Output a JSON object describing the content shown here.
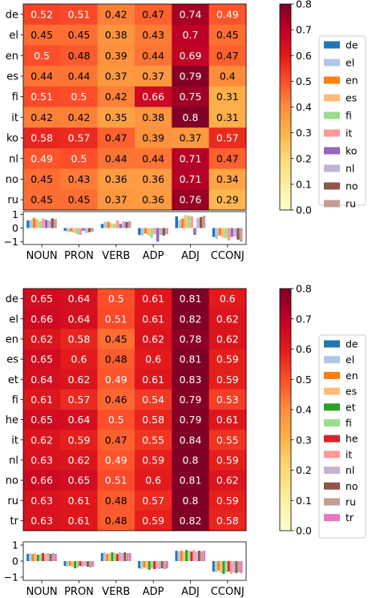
{
  "chart_data": [
    {
      "type": "heatmap",
      "rows": [
        "de",
        "el",
        "en",
        "es",
        "fi",
        "it",
        "ko",
        "nl",
        "no",
        "ru"
      ],
      "columns": [
        "NOUN",
        "PRON",
        "VERB",
        "ADP",
        "ADJ",
        "CCONJ"
      ],
      "values": [
        [
          0.52,
          0.51,
          0.42,
          0.47,
          0.74,
          0.49
        ],
        [
          0.45,
          0.45,
          0.38,
          0.43,
          0.7,
          0.45
        ],
        [
          0.5,
          0.48,
          0.39,
          0.44,
          0.69,
          0.47
        ],
        [
          0.44,
          0.44,
          0.37,
          0.37,
          0.79,
          0.4
        ],
        [
          0.51,
          0.5,
          0.42,
          0.66,
          0.75,
          0.31
        ],
        [
          0.42,
          0.42,
          0.35,
          0.38,
          0.8,
          0.31
        ],
        [
          0.58,
          0.57,
          0.47,
          0.39,
          0.37,
          0.57
        ],
        [
          0.49,
          0.5,
          0.44,
          0.44,
          0.71,
          0.47
        ],
        [
          0.45,
          0.43,
          0.36,
          0.36,
          0.71,
          0.34
        ],
        [
          0.45,
          0.45,
          0.37,
          0.36,
          0.76,
          0.29
        ]
      ],
      "cell_labels": [
        [
          "0.52",
          "0.51",
          "0.42",
          "0.47",
          "0.74",
          "0.49"
        ],
        [
          "0.45",
          "0.45",
          "0.38",
          "0.43",
          "0.7",
          "0.45"
        ],
        [
          "0.5",
          "0.48",
          "0.39",
          "0.44",
          "0.69",
          "0.47"
        ],
        [
          "0.44",
          "0.44",
          "0.37",
          "0.37",
          "0.79",
          "0.4"
        ],
        [
          "0.51",
          "0.5",
          "0.42",
          "0.66",
          "0.75",
          "0.31"
        ],
        [
          "0.42",
          "0.42",
          "0.35",
          "0.38",
          "0.8",
          "0.31"
        ],
        [
          "0.58",
          "0.57",
          "0.47",
          "0.39",
          "0.37",
          "0.57"
        ],
        [
          "0.49",
          "0.5",
          "0.44",
          "0.44",
          "0.71",
          "0.47"
        ],
        [
          "0.45",
          "0.43",
          "0.36",
          "0.36",
          "0.71",
          "0.34"
        ],
        [
          "0.45",
          "0.45",
          "0.37",
          "0.36",
          "0.76",
          "0.29"
        ]
      ],
      "colorbar": {
        "range": [
          0.0,
          0.8
        ],
        "ticks": [
          "0.0",
          "0.1",
          "0.2",
          "0.3",
          "0.4",
          "0.5",
          "0.6",
          "0.7",
          "0.8"
        ],
        "colormap": "YlOrRd"
      },
      "grid": false,
      "bar_subplot": {
        "type": "bar",
        "categories": [
          "NOUN",
          "PRON",
          "VERB",
          "ADP",
          "ADJ",
          "CCONJ"
        ],
        "ylim": [
          -1.2,
          1.2
        ],
        "yticks": [
          "1",
          "0",
          "−1"
        ],
        "series": [
          {
            "name": "de",
            "values": [
              0.55,
              -0.2,
              0.3,
              -0.5,
              0.85,
              -0.65
            ]
          },
          {
            "name": "el",
            "values": [
              0.6,
              -0.3,
              0.45,
              -0.55,
              0.6,
              -0.8
            ]
          },
          {
            "name": "en",
            "values": [
              0.75,
              -0.25,
              0.45,
              -0.4,
              0.7,
              -0.55
            ]
          },
          {
            "name": "es",
            "values": [
              0.65,
              -0.35,
              0.35,
              -0.55,
              0.95,
              -0.7
            ]
          },
          {
            "name": "fi",
            "values": [
              0.5,
              -0.45,
              0.3,
              -0.7,
              0.9,
              -0.75
            ]
          },
          {
            "name": "it",
            "values": [
              0.7,
              -0.5,
              0.55,
              -0.45,
              0.85,
              -0.9
            ]
          },
          {
            "name": "ko",
            "values": [
              0.6,
              -0.2,
              0.3,
              -1.0,
              -0.5,
              -0.65
            ]
          },
          {
            "name": "nl",
            "values": [
              0.55,
              -0.35,
              0.5,
              -0.5,
              0.75,
              -0.6
            ]
          },
          {
            "name": "no",
            "values": [
              0.7,
              -0.3,
              0.45,
              -0.55,
              0.8,
              -0.85
            ]
          },
          {
            "name": "ru",
            "values": [
              0.65,
              -0.25,
              0.5,
              -0.45,
              0.9,
              -1.0
            ]
          }
        ]
      },
      "legend": {
        "placement": "right",
        "entries": [
          "de",
          "el",
          "en",
          "es",
          "fi",
          "it",
          "ko",
          "nl",
          "no",
          "ru"
        ]
      },
      "series_colors": [
        "#1f77b4",
        "#aec7e8",
        "#ff7f0e",
        "#ffbb78",
        "#98df8a",
        "#ff9896",
        "#9467bd",
        "#c5b0d5",
        "#8c564b",
        "#c49c94"
      ]
    },
    {
      "type": "heatmap",
      "rows": [
        "de",
        "el",
        "en",
        "es",
        "et",
        "fi",
        "he",
        "it",
        "nl",
        "no",
        "ru",
        "tr"
      ],
      "columns": [
        "NOUN",
        "PRON",
        "VERB",
        "ADP",
        "ADJ",
        "CCONJ"
      ],
      "values": [
        [
          0.65,
          0.64,
          0.5,
          0.61,
          0.81,
          0.6
        ],
        [
          0.66,
          0.64,
          0.51,
          0.61,
          0.82,
          0.62
        ],
        [
          0.62,
          0.58,
          0.45,
          0.62,
          0.78,
          0.62
        ],
        [
          0.65,
          0.6,
          0.48,
          0.6,
          0.81,
          0.59
        ],
        [
          0.64,
          0.62,
          0.49,
          0.61,
          0.83,
          0.59
        ],
        [
          0.61,
          0.57,
          0.46,
          0.54,
          0.79,
          0.53
        ],
        [
          0.65,
          0.64,
          0.5,
          0.58,
          0.79,
          0.61
        ],
        [
          0.62,
          0.59,
          0.47,
          0.55,
          0.84,
          0.55
        ],
        [
          0.63,
          0.62,
          0.49,
          0.59,
          0.8,
          0.59
        ],
        [
          0.66,
          0.65,
          0.51,
          0.6,
          0.81,
          0.62
        ],
        [
          0.63,
          0.61,
          0.48,
          0.57,
          0.8,
          0.59
        ],
        [
          0.63,
          0.61,
          0.48,
          0.59,
          0.82,
          0.58
        ]
      ],
      "cell_labels": [
        [
          "0.65",
          "0.64",
          "0.5",
          "0.61",
          "0.81",
          "0.6"
        ],
        [
          "0.66",
          "0.64",
          "0.51",
          "0.61",
          "0.82",
          "0.62"
        ],
        [
          "0.62",
          "0.58",
          "0.45",
          "0.62",
          "0.78",
          "0.62"
        ],
        [
          "0.65",
          "0.6",
          "0.48",
          "0.6",
          "0.81",
          "0.59"
        ],
        [
          "0.64",
          "0.62",
          "0.49",
          "0.61",
          "0.83",
          "0.59"
        ],
        [
          "0.61",
          "0.57",
          "0.46",
          "0.54",
          "0.79",
          "0.53"
        ],
        [
          "0.65",
          "0.64",
          "0.5",
          "0.58",
          "0.79",
          "0.61"
        ],
        [
          "0.62",
          "0.59",
          "0.47",
          "0.55",
          "0.84",
          "0.55"
        ],
        [
          "0.63",
          "0.62",
          "0.49",
          "0.59",
          "0.8",
          "0.59"
        ],
        [
          "0.66",
          "0.65",
          "0.51",
          "0.6",
          "0.81",
          "0.62"
        ],
        [
          "0.63",
          "0.61",
          "0.48",
          "0.57",
          "0.8",
          "0.59"
        ],
        [
          "0.63",
          "0.61",
          "0.48",
          "0.59",
          "0.82",
          "0.58"
        ]
      ],
      "colorbar": {
        "range": [
          0.0,
          0.8
        ],
        "ticks": [
          "0.0",
          "0.1",
          "0.2",
          "0.3",
          "0.4",
          "0.5",
          "0.6",
          "0.7",
          "0.8"
        ],
        "colormap": "YlOrRd"
      },
      "grid": false,
      "bar_subplot": {
        "type": "bar",
        "categories": [
          "NOUN",
          "PRON",
          "VERB",
          "ADP",
          "ADJ",
          "CCONJ"
        ],
        "ylim": [
          -1.2,
          1.2
        ],
        "yticks": [
          "1",
          "0",
          "−1"
        ],
        "series": [
          {
            "name": "de",
            "values": [
              0.45,
              -0.3,
              0.5,
              -0.45,
              0.65,
              -0.65
            ]
          },
          {
            "name": "el",
            "values": [
              0.5,
              -0.35,
              0.55,
              -0.5,
              0.6,
              -0.7
            ]
          },
          {
            "name": "en",
            "values": [
              0.45,
              -0.3,
              0.45,
              -0.4,
              0.65,
              -0.6
            ]
          },
          {
            "name": "es",
            "values": [
              0.5,
              -0.35,
              0.5,
              -0.5,
              0.6,
              -0.75
            ]
          },
          {
            "name": "et",
            "values": [
              0.4,
              -0.45,
              0.55,
              -0.55,
              0.7,
              -0.8
            ]
          },
          {
            "name": "fi",
            "values": [
              0.45,
              -0.4,
              0.5,
              -0.45,
              0.65,
              -0.7
            ]
          },
          {
            "name": "he",
            "values": [
              0.5,
              -0.3,
              0.45,
              -0.5,
              0.6,
              -0.65
            ]
          },
          {
            "name": "it",
            "values": [
              0.45,
              -0.35,
              0.55,
              -0.45,
              0.7,
              -0.8
            ]
          },
          {
            "name": "nl",
            "values": [
              0.5,
              -0.3,
              0.5,
              -0.5,
              0.6,
              -0.7
            ]
          },
          {
            "name": "no",
            "values": [
              0.45,
              -0.35,
              0.55,
              -0.45,
              0.65,
              -0.75
            ]
          },
          {
            "name": "ru",
            "values": [
              0.5,
              -0.4,
              0.5,
              -0.5,
              0.6,
              -0.7
            ]
          },
          {
            "name": "tr",
            "values": [
              0.45,
              -0.35,
              0.5,
              -0.45,
              0.65,
              -0.75
            ]
          }
        ]
      },
      "legend": {
        "placement": "right",
        "entries": [
          "de",
          "el",
          "en",
          "es",
          "et",
          "fi",
          "he",
          "it",
          "nl",
          "no",
          "ru",
          "tr"
        ]
      },
      "series_colors": [
        "#1f77b4",
        "#aec7e8",
        "#ff7f0e",
        "#ffbb78",
        "#2ca02c",
        "#98df8a",
        "#d62728",
        "#ff9896",
        "#c5b0d5",
        "#8c564b",
        "#c49c94",
        "#e377c2"
      ]
    }
  ]
}
